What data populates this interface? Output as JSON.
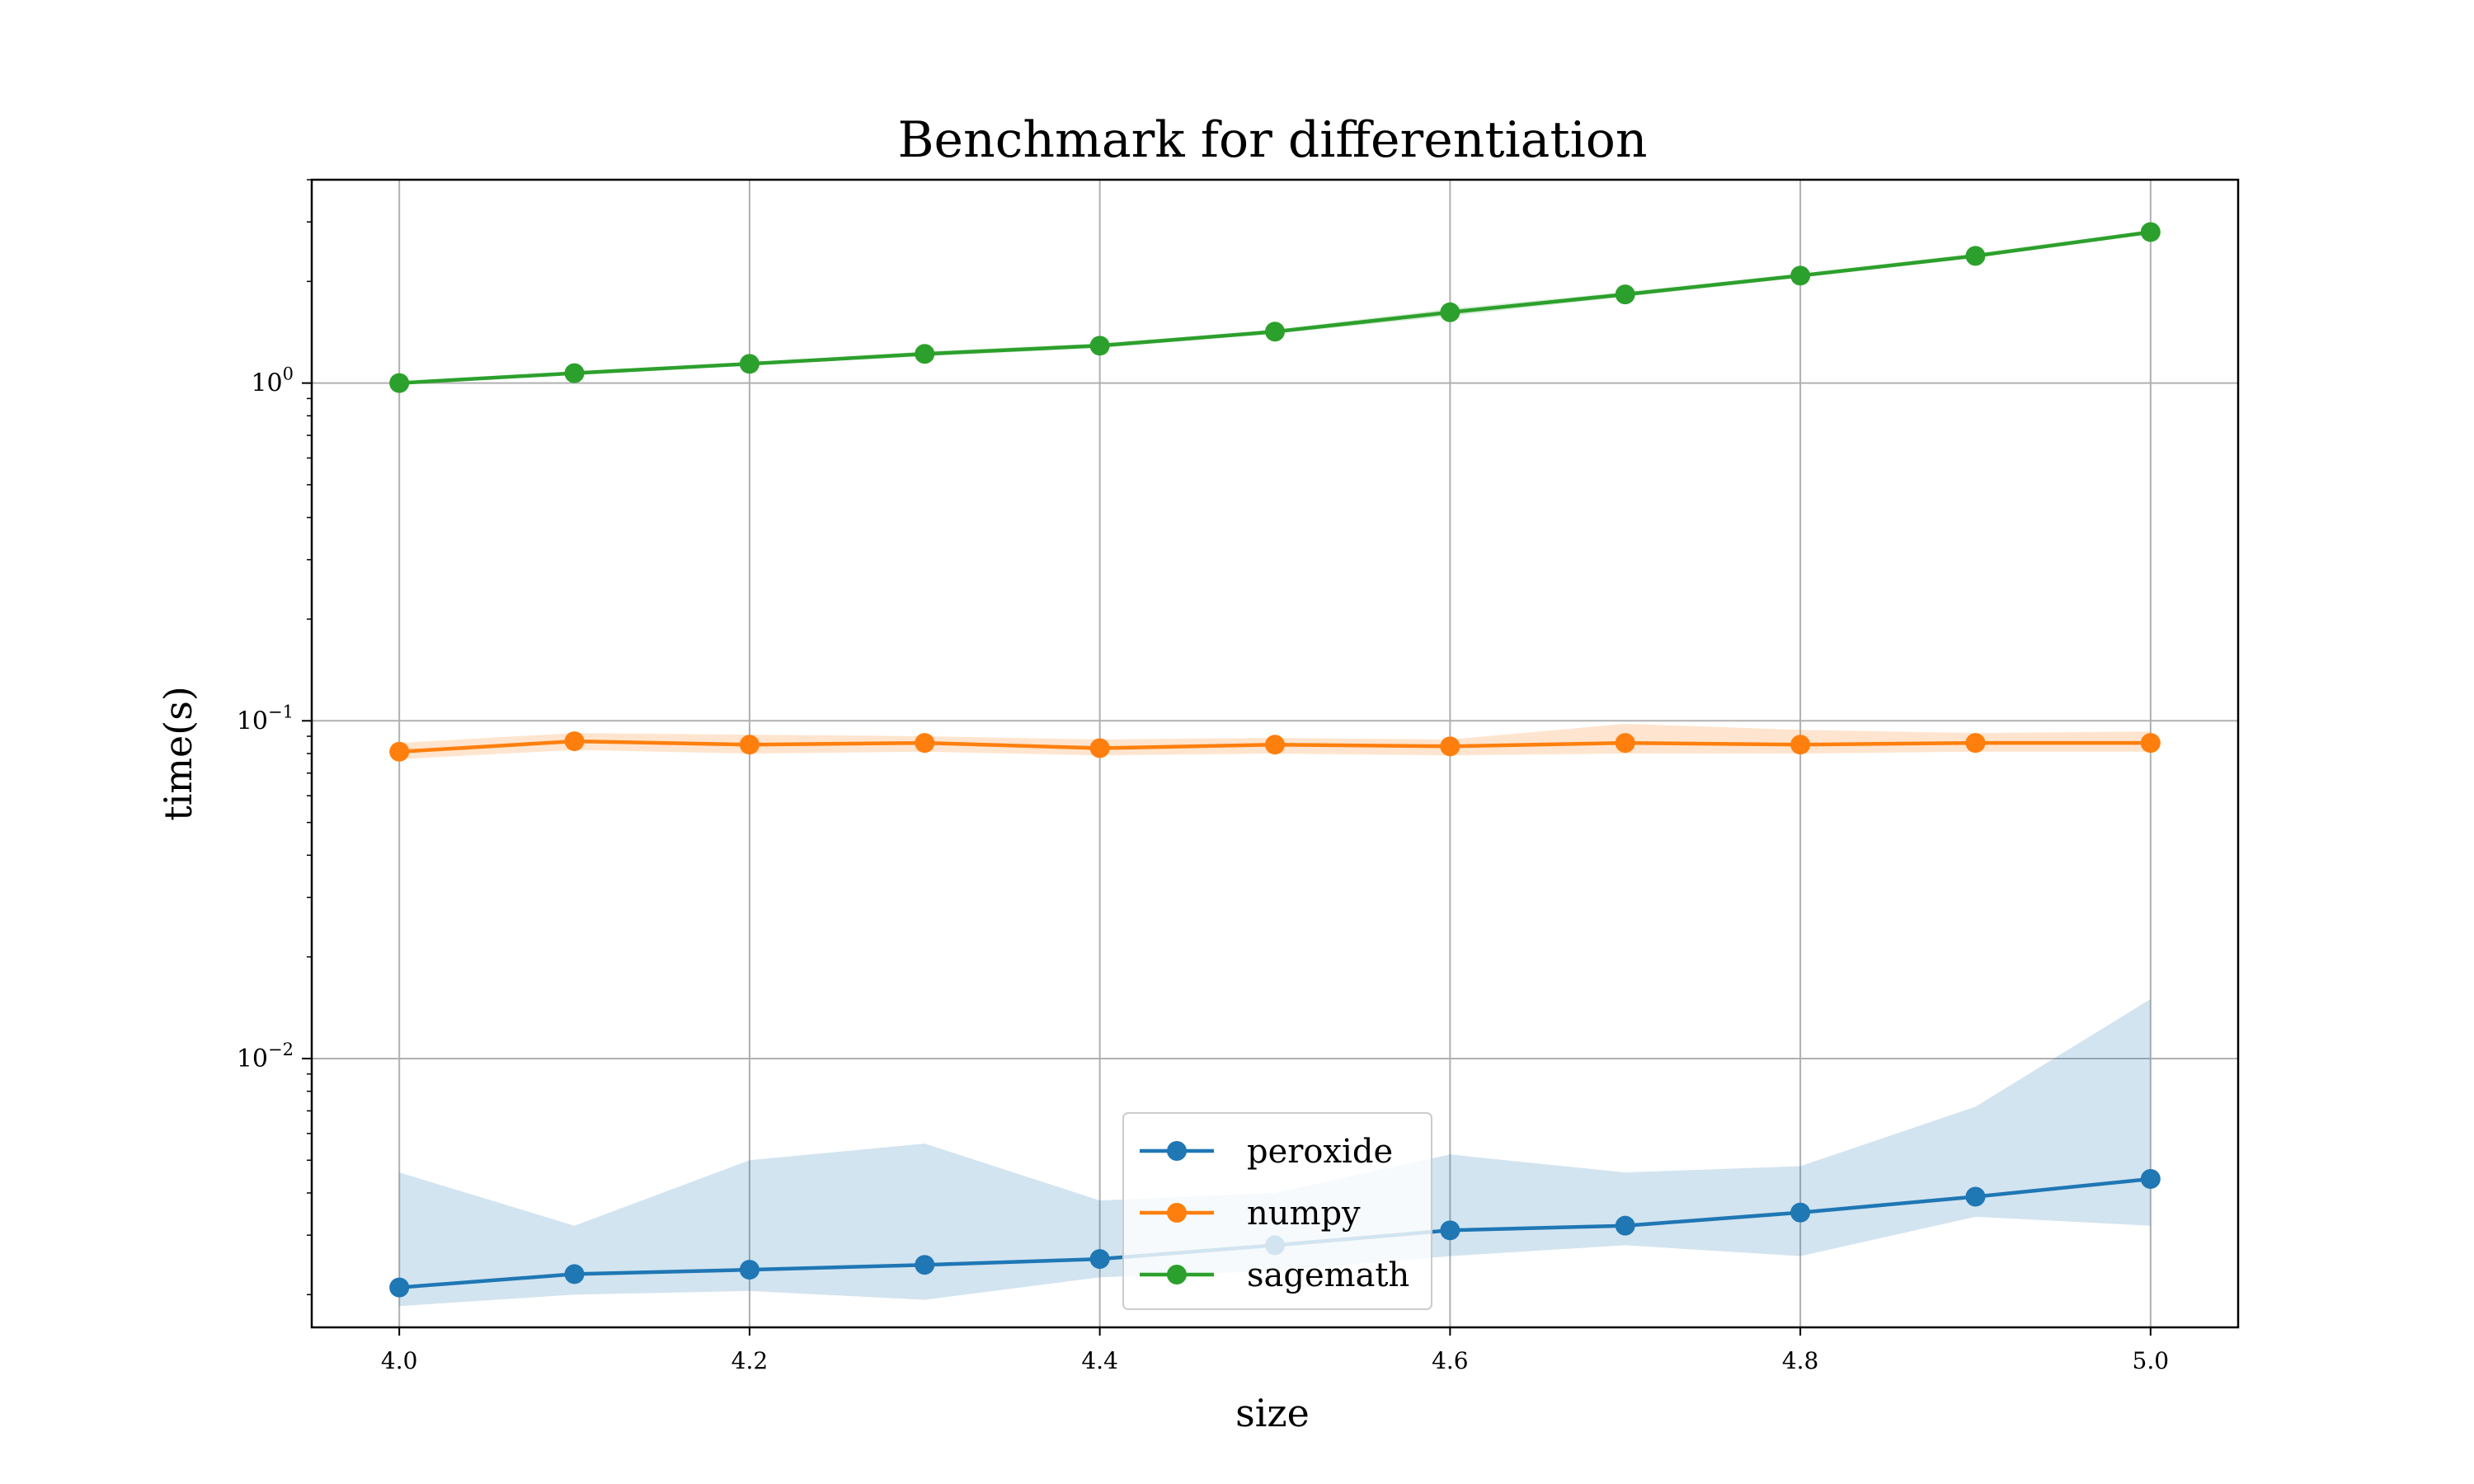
{
  "chart_data": {
    "type": "line",
    "title": "Benchmark for differentiation",
    "xlabel": "size",
    "ylabel": "time(s)",
    "xlim": [
      3.95,
      5.05
    ],
    "ylim": [
      0.0016,
      4.0
    ],
    "yscale": "log",
    "grid": true,
    "legend_position": "bottom-center",
    "x": [
      4.0,
      4.1,
      4.2,
      4.3,
      4.4,
      4.5,
      4.6,
      4.7,
      4.8,
      4.9,
      5.0
    ],
    "xticks": [
      4.0,
      4.2,
      4.4,
      4.6,
      4.8,
      5.0
    ],
    "xtick_labels": [
      "4.0",
      "4.2",
      "4.4",
      "4.6",
      "4.8",
      "5.0"
    ],
    "yticks": [
      {
        "value": 1,
        "base": "10",
        "exp": "0"
      },
      {
        "value": 0.1,
        "base": "10",
        "exp": "−1"
      },
      {
        "value": 0.01,
        "base": "10",
        "exp": "−2"
      }
    ],
    "series": [
      {
        "name": "peroxide",
        "color": "#1f77b4",
        "values": [
          0.0021,
          0.0023,
          0.00237,
          0.00245,
          0.00255,
          0.0028,
          0.0031,
          0.0032,
          0.0035,
          0.0039,
          0.0044
        ],
        "lower": [
          0.00185,
          0.002,
          0.00205,
          0.00193,
          0.00225,
          0.00235,
          0.0026,
          0.0028,
          0.0026,
          0.0034,
          0.0032
        ],
        "upper": [
          0.0046,
          0.0032,
          0.005,
          0.0056,
          0.0038,
          0.004,
          0.0052,
          0.0046,
          0.0048,
          0.0072,
          0.015
        ]
      },
      {
        "name": "numpy",
        "color": "#ff7f0e",
        "values": [
          0.081,
          0.087,
          0.085,
          0.086,
          0.083,
          0.085,
          0.084,
          0.086,
          0.085,
          0.086,
          0.086
        ],
        "lower": [
          0.077,
          0.082,
          0.08,
          0.081,
          0.079,
          0.08,
          0.079,
          0.08,
          0.08,
          0.081,
          0.081
        ],
        "upper": [
          0.086,
          0.092,
          0.091,
          0.09,
          0.088,
          0.089,
          0.088,
          0.098,
          0.094,
          0.092,
          0.093
        ]
      },
      {
        "name": "sagemath",
        "color": "#2ca02c",
        "values": [
          1.0,
          1.07,
          1.14,
          1.22,
          1.29,
          1.42,
          1.62,
          1.83,
          2.08,
          2.38,
          2.8
        ],
        "lower": [
          0.99,
          1.06,
          1.13,
          1.2,
          1.27,
          1.4,
          1.58,
          1.8,
          2.05,
          2.35,
          2.76
        ],
        "upper": [
          1.01,
          1.08,
          1.15,
          1.24,
          1.31,
          1.44,
          1.66,
          1.86,
          2.11,
          2.42,
          2.84
        ]
      }
    ]
  }
}
